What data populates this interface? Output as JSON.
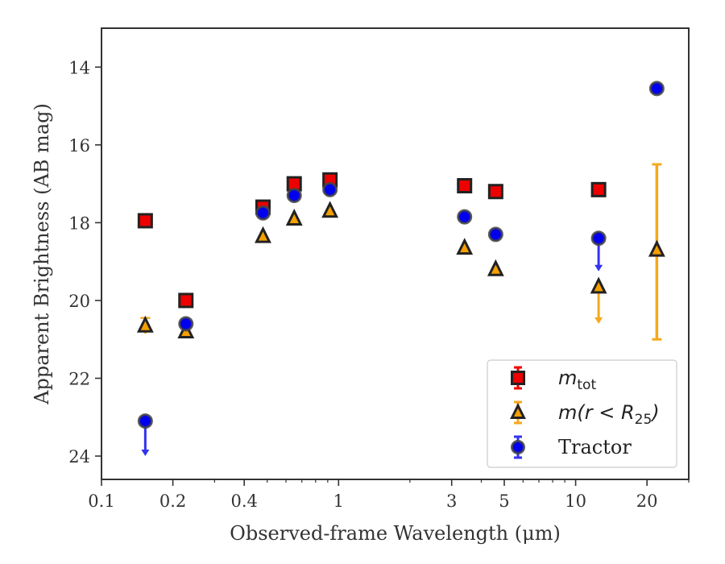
{
  "chart_data": {
    "type": "scatter",
    "xlabel": "Observed-frame Wavelength (μm)",
    "ylabel": "Apparent Brightness (AB mag)",
    "x_scale": "log",
    "xlim": [
      0.1,
      30
    ],
    "ylim": [
      24.6,
      13.0
    ],
    "y_inverted": true,
    "x_ticks": [
      {
        "value": 0.1,
        "label": "0.1"
      },
      {
        "value": 0.2,
        "label": "0.2"
      },
      {
        "value": 0.4,
        "label": "0.4"
      },
      {
        "value": 1,
        "label": "1"
      },
      {
        "value": 3,
        "label": "3"
      },
      {
        "value": 5,
        "label": "5"
      },
      {
        "value": 10,
        "label": "10"
      },
      {
        "value": 20,
        "label": "20"
      }
    ],
    "x_minor_ticks": [
      0.3,
      0.5,
      0.6,
      0.7,
      0.8,
      0.9,
      2,
      4,
      6,
      7,
      8,
      9,
      30
    ],
    "y_ticks": [
      {
        "value": 14,
        "label": "14"
      },
      {
        "value": 16,
        "label": "16"
      },
      {
        "value": 18,
        "label": "18"
      },
      {
        "value": 20,
        "label": "20"
      },
      {
        "value": 22,
        "label": "22"
      },
      {
        "value": 24,
        "label": "24"
      }
    ],
    "grid": false,
    "legend_position": "bottom-right",
    "series": [
      {
        "key": "mtot",
        "marker": "square",
        "color": "#ee0000",
        "edge_color": "#222222",
        "points": [
          {
            "x": 0.153,
            "y": 17.95
          },
          {
            "x": 0.227,
            "y": 20.0
          },
          {
            "x": 0.48,
            "y": 17.6
          },
          {
            "x": 0.65,
            "y": 17.0
          },
          {
            "x": 0.92,
            "y": 16.9
          },
          {
            "x": 3.4,
            "y": 17.05
          },
          {
            "x": 4.6,
            "y": 17.2
          },
          {
            "x": 12.5,
            "y": 17.15
          }
        ]
      },
      {
        "key": "mr25",
        "marker": "triangle",
        "color": "#f5a000",
        "edge_color": "#222222",
        "err_color": "#f5a81d",
        "points": [
          {
            "x": 0.153,
            "y": 20.65,
            "err": 0.2
          },
          {
            "x": 0.227,
            "y": 20.8
          },
          {
            "x": 0.48,
            "y": 18.35
          },
          {
            "x": 0.65,
            "y": 17.9
          },
          {
            "x": 0.92,
            "y": 17.7
          },
          {
            "x": 3.4,
            "y": 18.65
          },
          {
            "x": 4.6,
            "y": 19.2
          },
          {
            "x": 12.5,
            "y": 19.65,
            "upper_limit_to": 20.6
          },
          {
            "x": 22.0,
            "y": 18.7,
            "err_lo": 16.5,
            "err_hi": 21.0
          }
        ]
      },
      {
        "key": "tractor",
        "marker": "circle",
        "color": "#0000ee",
        "edge_color": "#444444",
        "err_color": "#3333ee",
        "points": [
          {
            "x": 0.153,
            "y": 23.1,
            "upper_limit_to": 24.0
          },
          {
            "x": 0.227,
            "y": 20.6
          },
          {
            "x": 0.48,
            "y": 17.75
          },
          {
            "x": 0.65,
            "y": 17.3
          },
          {
            "x": 0.92,
            "y": 17.15
          },
          {
            "x": 3.4,
            "y": 17.85
          },
          {
            "x": 4.6,
            "y": 18.3
          },
          {
            "x": 12.5,
            "y": 18.4,
            "upper_limit_to": 19.25
          },
          {
            "x": 22.0,
            "y": 14.55
          }
        ]
      }
    ],
    "legend": [
      {
        "key": "mtot",
        "text": "m",
        "sub": "tot",
        "style": "math"
      },
      {
        "key": "mr25",
        "text": "m(r < R",
        "sub": "25",
        "suffix": ")",
        "style": "math"
      },
      {
        "key": "tractor",
        "text": "Tractor",
        "style": "text"
      }
    ]
  }
}
